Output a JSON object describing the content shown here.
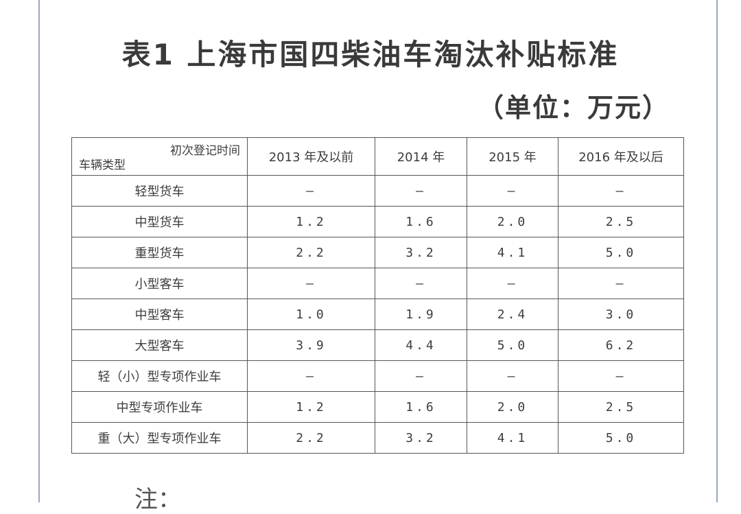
{
  "title": "表1 上海市国四柴油车淘汰补贴标准",
  "unit": "（单位：万元）",
  "table": {
    "corner_top": "初次登记时间",
    "corner_bottom": "车辆类型",
    "columns": [
      "2013 年及以前",
      "2014 年",
      "2015 年",
      "2016 年及以后"
    ],
    "rows": [
      {
        "type": "轻型货车",
        "values": [
          "–",
          "–",
          "–",
          "–"
        ]
      },
      {
        "type": "中型货车",
        "values": [
          "1.2",
          "1.6",
          "2.0",
          "2.5"
        ]
      },
      {
        "type": "重型货车",
        "values": [
          "2.2",
          "3.2",
          "4.1",
          "5.0"
        ]
      },
      {
        "type": "小型客车",
        "values": [
          "–",
          "–",
          "–",
          "–"
        ]
      },
      {
        "type": "中型客车",
        "values": [
          "1.0",
          "1.9",
          "2.4",
          "3.0"
        ]
      },
      {
        "type": "大型客车",
        "values": [
          "3.9",
          "4.4",
          "5.0",
          "6.2"
        ]
      },
      {
        "type": "轻（小）型专项作业车",
        "values": [
          "–",
          "–",
          "–",
          "–"
        ]
      },
      {
        "type": "中型专项作业车",
        "values": [
          "1.2",
          "1.6",
          "2.0",
          "2.5"
        ]
      },
      {
        "type": "重（大）型专项作业车",
        "values": [
          "2.2",
          "3.2",
          "4.1",
          "5.0"
        ]
      }
    ]
  },
  "note": "注："
}
